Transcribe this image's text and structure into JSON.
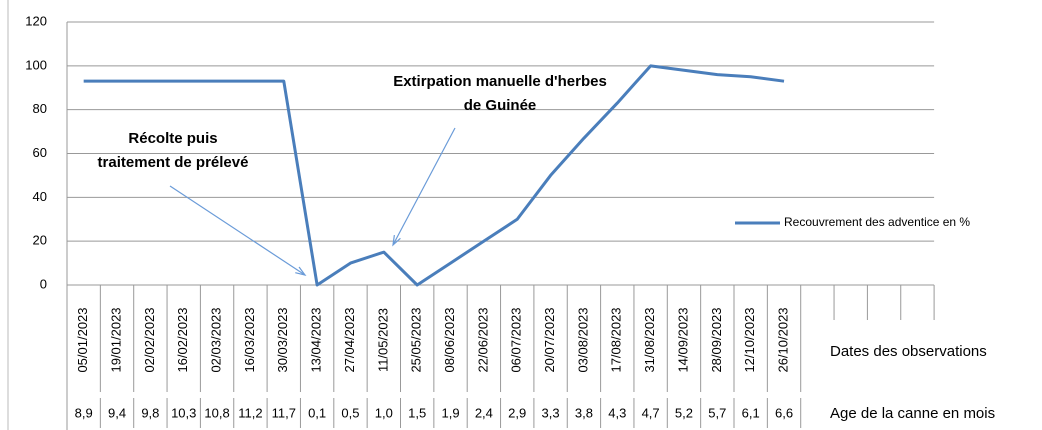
{
  "chart_data": {
    "type": "line",
    "categories": [
      "05/01/2023",
      "19/01/2023",
      "02/02/2023",
      "16/02/2023",
      "02/03/2023",
      "16/03/2023",
      "30/03/2023",
      "13/04/2023",
      "27/04/2023",
      "11/05/2023",
      "25/05/2023",
      "08/06/2023",
      "22/06/2023",
      "06/07/2023",
      "20/07/2023",
      "03/08/2023",
      "17/08/2023",
      "31/08/2023",
      "14/09/2023",
      "28/09/2023",
      "12/10/2023",
      "26/10/2023",
      null,
      null,
      null,
      null
    ],
    "age_labels": [
      "8,9",
      "9,4",
      "9,8",
      "10,3",
      "10,8",
      "11,2",
      "11,7",
      "0,1",
      "0,5",
      "1,0",
      "1,5",
      "1,9",
      "2,4",
      "2,9",
      "3,3",
      "3,8",
      "4,3",
      "4,7",
      "5,2",
      "5,7",
      "6,1",
      "6,6",
      null,
      null,
      null,
      null
    ],
    "series": [
      {
        "name": "Recouvrement des adventice en %",
        "color": "#4a7ebb",
        "values": [
          93,
          93,
          93,
          93,
          93,
          93,
          93,
          0,
          10,
          15,
          0,
          10,
          20,
          30,
          50,
          67,
          83,
          100,
          98,
          96,
          95,
          93,
          null,
          null,
          null,
          null
        ]
      }
    ],
    "ylim": [
      0,
      120
    ],
    "yticks": [
      0,
      20,
      40,
      60,
      80,
      100,
      120
    ],
    "grid": true,
    "legend": "right",
    "x_label": "Dates des observations",
    "x_label2": "Age de la canne en mois",
    "annotations": [
      {
        "lines": [
          "Récolte puis",
          "traitement de prélevé"
        ]
      },
      {
        "lines": [
          "Extirpation manuelle d'herbes",
          "de Guinée"
        ]
      }
    ]
  }
}
